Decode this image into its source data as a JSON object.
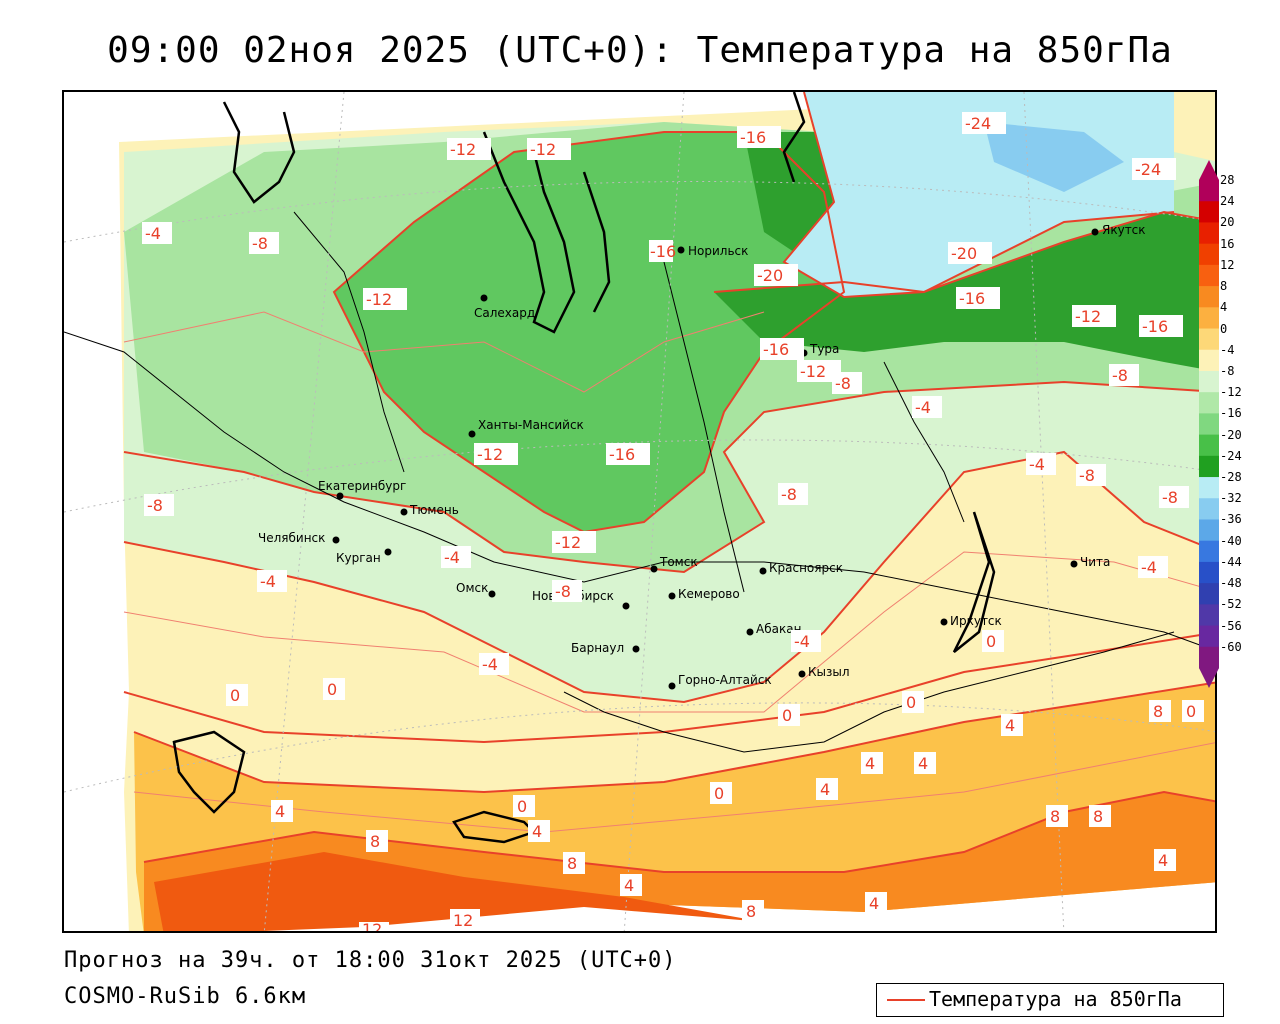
{
  "title": "09:00 02ноя 2025 (UTC+0): Температура на 850гПа",
  "footer": {
    "forecast": "Прогноз на 39ч. от 18:00 31окт 2025 (UTC+0)",
    "model": "COSMO-RuSib 6.6км"
  },
  "legend": {
    "label": "Температура на 850гПа",
    "line_color": "#e8412a"
  },
  "colorbar": {
    "ticks": [
      "28",
      "24",
      "20",
      "16",
      "12",
      "8",
      "4",
      "0",
      "-4",
      "-8",
      "-12",
      "-16",
      "-20",
      "-24",
      "-28",
      "-32",
      "-36",
      "-40",
      "-44",
      "-48",
      "-52",
      "-56",
      "-60"
    ],
    "colors": [
      "#b0005a",
      "#d40000",
      "#e82000",
      "#f04000",
      "#f86010",
      "#f88a20",
      "#fcb040",
      "#fdd878",
      "#fdf2b8",
      "#d8f4d0",
      "#b0e8a8",
      "#80d880",
      "#48c048",
      "#20a020",
      "#b8ecf4",
      "#88ccf0",
      "#5ca8e8",
      "#3878e0",
      "#2850c8",
      "#3040b0",
      "#5038a8",
      "#6828a0",
      "#801880"
    ]
  },
  "cities": [
    {
      "name": "Норильск"
    },
    {
      "name": "Якутск"
    },
    {
      "name": "Салехард"
    },
    {
      "name": "Тура"
    },
    {
      "name": "Ханты-Мансийск"
    },
    {
      "name": "Екатеринбург"
    },
    {
      "name": "Тюмень"
    },
    {
      "name": "Челябинск"
    },
    {
      "name": "Курган"
    },
    {
      "name": "Омск"
    },
    {
      "name": "Новосибирск"
    },
    {
      "name": "Томск"
    },
    {
      "name": "Кемерово"
    },
    {
      "name": "Красноярск"
    },
    {
      "name": "Барнаул"
    },
    {
      "name": "Абакан"
    },
    {
      "name": "Горно-Алтайск"
    },
    {
      "name": "Кызыл"
    },
    {
      "name": "Иркутск"
    },
    {
      "name": "Чита"
    }
  ],
  "contour_labels": [
    "-12",
    "-12",
    "-16",
    "-24",
    "-24",
    "-4",
    "-8",
    "-16",
    "-20",
    "-20",
    "-16",
    "-12",
    "-16",
    "-12",
    "-16",
    "-12",
    "-8",
    "-8",
    "-4",
    "-12",
    "-16",
    "-8",
    "-8",
    "-4",
    "-8",
    "-8",
    "-12",
    "-4",
    "-4",
    "-8",
    "-4",
    "-4",
    "-4",
    "0",
    "0",
    "0",
    "0",
    "0",
    "4",
    "4",
    "0",
    "4",
    "0",
    "4",
    "4",
    "8",
    "8",
    "8",
    "4",
    "8",
    "8",
    "4",
    "4",
    "12",
    "12",
    "8",
    "0",
    "4"
  ]
}
